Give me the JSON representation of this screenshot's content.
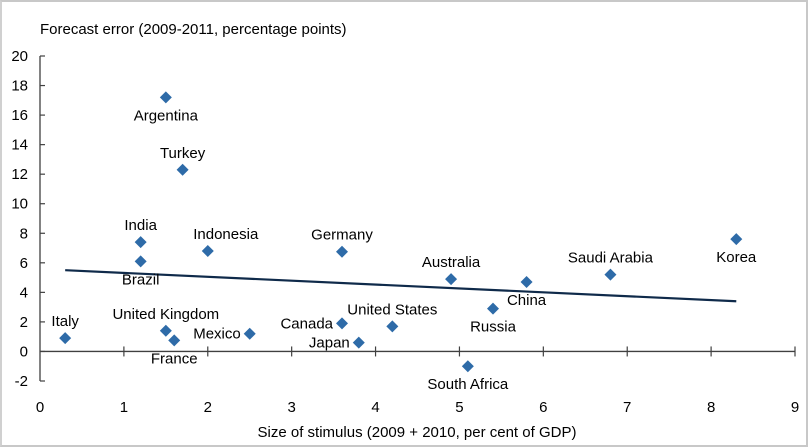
{
  "chart_data": {
    "type": "scatter",
    "title": "",
    "ylabel": "Forecast error (2009-2011, percentage points)",
    "xlabel": "Size of stimulus (2009 + 2010, per cent of GDP)",
    "xlim": [
      0,
      9
    ],
    "ylim": [
      -2,
      20
    ],
    "xticks": [
      "0",
      "1",
      "2",
      "3",
      "4",
      "5",
      "6",
      "7",
      "8",
      "9"
    ],
    "yticks": [
      "20",
      "18",
      "16",
      "14",
      "12",
      "10",
      "8",
      "6",
      "4",
      "2",
      "0",
      "-2"
    ],
    "grid": false,
    "legend": "none",
    "marker_color": "#2e6ba8",
    "trendline_color": "#0f2a4a",
    "points": [
      {
        "label": "Argentina",
        "x": 1.5,
        "y": 17.2,
        "label_pos": "below"
      },
      {
        "label": "Turkey",
        "x": 1.7,
        "y": 12.3,
        "label_pos": "above"
      },
      {
        "label": "India",
        "x": 1.2,
        "y": 7.4,
        "label_pos": "above"
      },
      {
        "label": "Brazil",
        "x": 1.2,
        "y": 6.1,
        "label_pos": "below"
      },
      {
        "label": "Indonesia",
        "x": 2.0,
        "y": 6.8,
        "label_pos": "above-right"
      },
      {
        "label": "Germany",
        "x": 3.6,
        "y": 6.75,
        "label_pos": "above"
      },
      {
        "label": "Australia",
        "x": 4.9,
        "y": 4.9,
        "label_pos": "above"
      },
      {
        "label": "China",
        "x": 5.8,
        "y": 4.7,
        "label_pos": "below"
      },
      {
        "label": "Saudi Arabia",
        "x": 6.8,
        "y": 5.2,
        "label_pos": "above"
      },
      {
        "label": "Korea",
        "x": 8.3,
        "y": 7.6,
        "label_pos": "below"
      },
      {
        "label": "Italy",
        "x": 0.3,
        "y": 0.9,
        "label_pos": "above"
      },
      {
        "label": "United Kingdom",
        "x": 1.5,
        "y": 1.4,
        "label_pos": "above"
      },
      {
        "label": "France",
        "x": 1.6,
        "y": 0.75,
        "label_pos": "below"
      },
      {
        "label": "Mexico",
        "x": 2.5,
        "y": 1.2,
        "label_pos": "left"
      },
      {
        "label": "Canada",
        "x": 3.6,
        "y": 1.9,
        "label_pos": "left"
      },
      {
        "label": "Japan",
        "x": 3.8,
        "y": 0.6,
        "label_pos": "left"
      },
      {
        "label": "United States",
        "x": 4.2,
        "y": 1.7,
        "label_pos": "above"
      },
      {
        "label": "Russia",
        "x": 5.4,
        "y": 2.9,
        "label_pos": "below"
      },
      {
        "label": "South Africa",
        "x": 5.1,
        "y": -1.0,
        "label_pos": "below"
      }
    ],
    "trendline": {
      "x": [
        0.3,
        8.3
      ],
      "y": [
        5.5,
        3.4
      ]
    }
  }
}
